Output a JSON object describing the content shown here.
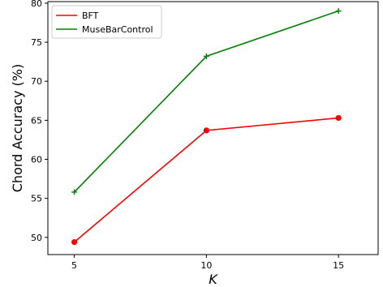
{
  "chart_data": {
    "type": "line",
    "title": "",
    "xlabel": "K",
    "ylabel": "Chord Accuracy (%)",
    "x": [
      5,
      10,
      15
    ],
    "xlim": [
      4,
      16.5
    ],
    "ylim": [
      47.8,
      80.2
    ],
    "xticks": [
      "5",
      "10",
      "15"
    ],
    "yticks": [
      "50",
      "55",
      "60",
      "65",
      "70",
      "75",
      "80"
    ],
    "grid": false,
    "legend_position": "top-left",
    "series": [
      {
        "name": "BFT",
        "values": [
          49.4,
          63.7,
          65.3
        ],
        "color": "#ff0000",
        "marker": "circle"
      },
      {
        "name": "MuseBarControl",
        "values": [
          55.8,
          73.2,
          79.0
        ],
        "color": "#008000",
        "marker": "plus"
      }
    ]
  }
}
